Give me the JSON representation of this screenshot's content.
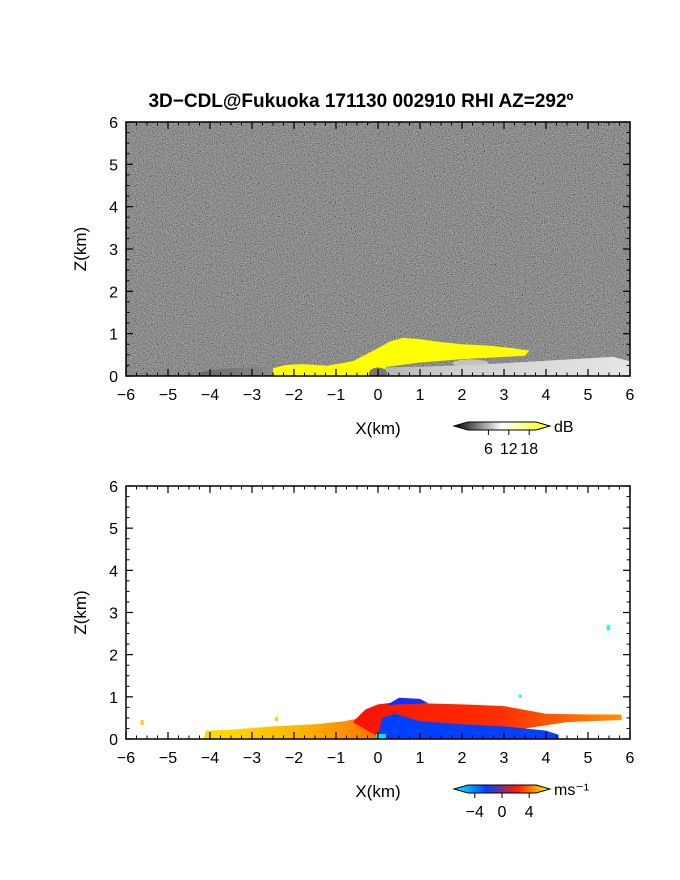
{
  "title": "3D−CDL@Fukuoka 171130 002910 RHI AZ=292º",
  "chart_data": [
    {
      "type": "heatmap",
      "panel": "snr",
      "xlabel": "X(km)",
      "ylabel": "Z(km)",
      "xlim": [
        -6,
        6
      ],
      "ylim": [
        0,
        6
      ],
      "x_ticks": [
        "−6",
        "−5",
        "−4",
        "−3",
        "−2",
        "−1",
        "0",
        "1",
        "2",
        "3",
        "4",
        "5",
        "6"
      ],
      "y_ticks": [
        "0",
        "1",
        "2",
        "3",
        "4",
        "5",
        "6"
      ],
      "background": "noise-gray",
      "colorbar": {
        "unit": "dB",
        "ticks": [
          "6",
          "12",
          "18"
        ],
        "tick_values": [
          6,
          12,
          18
        ],
        "range": [
          0,
          20
        ],
        "colors": [
          "#000000",
          "#ffffff",
          "#ffff00"
        ]
      },
      "features": [
        {
          "label": "ground-clutter",
          "x": [
            -4.2,
            6.0
          ],
          "z_top": [
            0.15,
            0.45
          ],
          "color": "#bbbbbb"
        },
        {
          "label": "strong-return",
          "x": [
            -2.5,
            3.6
          ],
          "z_top_max": 0.9,
          "z_top_at": 0.5,
          "color": "#ffff00"
        }
      ]
    },
    {
      "type": "heatmap",
      "panel": "velocity",
      "xlabel": "X(km)",
      "ylabel": "Z(km)",
      "xlim": [
        -6,
        6
      ],
      "ylim": [
        0,
        6
      ],
      "x_ticks": [
        "−6",
        "−5",
        "−4",
        "−3",
        "−2",
        "−1",
        "0",
        "1",
        "2",
        "3",
        "4",
        "5",
        "6"
      ],
      "y_ticks": [
        "0",
        "1",
        "2",
        "3",
        "4",
        "5",
        "6"
      ],
      "background": "white",
      "colorbar": {
        "unit": "ms⁻¹",
        "ticks": [
          "−4",
          "0",
          "4"
        ],
        "tick_values": [
          -4,
          0,
          4
        ],
        "range": [
          -5,
          5
        ],
        "colors": [
          "#00ffff",
          "#0040ff",
          "#ff2000",
          "#ffff00"
        ]
      },
      "features": [
        {
          "label": "positive-velocity-layer",
          "x": [
            -4.1,
            0.0
          ],
          "z_top": [
            0.2,
            0.45
          ],
          "color": "#ffcc00"
        },
        {
          "label": "receding-outflow",
          "x": [
            0.0,
            5.8
          ],
          "z_top_max": 0.85,
          "color": "#ff3000"
        },
        {
          "label": "approaching-core",
          "x": [
            0.0,
            4.3
          ],
          "z_top_max": 0.6,
          "color": "#0040ff"
        }
      ]
    }
  ]
}
